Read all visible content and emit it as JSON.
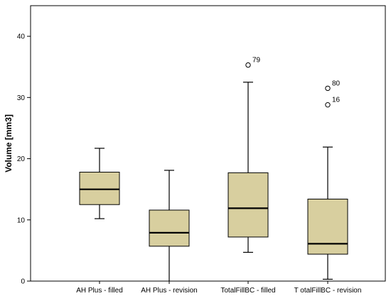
{
  "chart_data": {
    "type": "boxplot",
    "ylabel": "Volume [mm3]",
    "ylim": [
      0,
      45
    ],
    "yticks": [
      0,
      10,
      20,
      30,
      40
    ],
    "grid": false,
    "box_color": "#d8cf9f",
    "categories": [
      "AH Plus - filled",
      "AH Plus - revision",
      "TotalFillBC - filled",
      "T otalFillBC - revision"
    ],
    "boxes": [
      {
        "category": "AH Plus - filled",
        "whisker_low": 10.2,
        "q1": 12.5,
        "median": 15.0,
        "q3": 17.8,
        "whisker_high": 21.7,
        "outliers": []
      },
      {
        "category": "AH Plus - revision",
        "whisker_low": 0.0,
        "q1": 5.7,
        "median": 7.9,
        "q3": 11.6,
        "whisker_high": 18.1,
        "outliers": []
      },
      {
        "category": "TotalFillBC - filled",
        "whisker_low": 4.7,
        "q1": 7.2,
        "median": 11.9,
        "q3": 17.7,
        "whisker_high": 32.5,
        "outliers": [
          {
            "label": "79",
            "value": 35.3
          }
        ]
      },
      {
        "category": "T otalFillBC - revision",
        "whisker_low": 0.3,
        "q1": 4.4,
        "median": 6.1,
        "q3": 13.4,
        "whisker_high": 21.9,
        "outliers": [
          {
            "label": "80",
            "value": 31.5
          },
          {
            "label": "16",
            "value": 28.8
          }
        ]
      }
    ]
  }
}
